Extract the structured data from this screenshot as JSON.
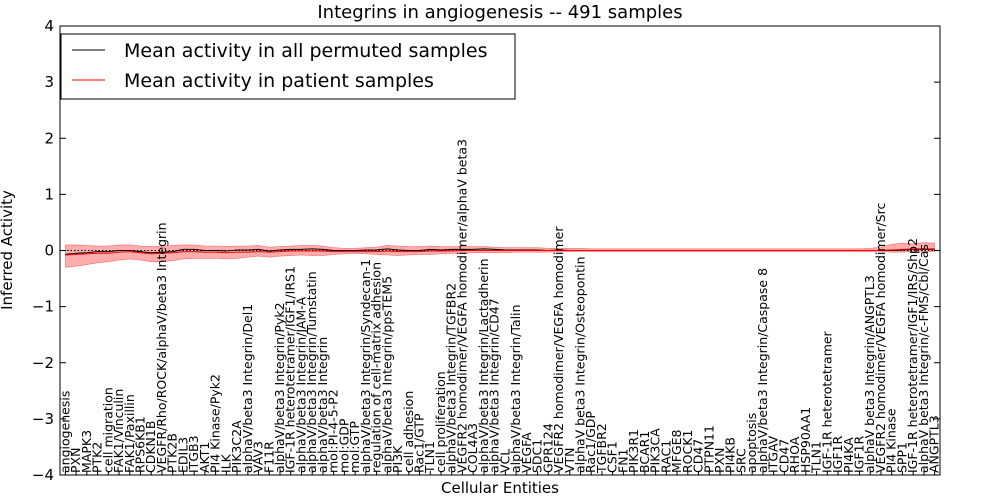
{
  "chart_data": {
    "type": "line",
    "title": "Integrins in angiogenesis -- 491 samples",
    "xlabel": "Cellular Entities",
    "ylabel": "Inferred Activity",
    "ylim": [
      -4,
      4
    ],
    "yticks": [
      "−4",
      "−3",
      "−2",
      "−1",
      "0",
      "1",
      "2",
      "3",
      "4"
    ],
    "categories": [
      "angiogenesis",
      "PXN",
      "MAPK3",
      "PTK2",
      "cell migration",
      "FAK1/Vinculin",
      "FAK1/Paxillin",
      "RPS6KB1",
      "CDKN1B",
      "VEGFR/Rho/ROCK/alphaV/beta3 Integrin",
      "PTK2B",
      "EDIL3",
      "ITGB3",
      "AKT1",
      "PI4 Kinase/Pyk2",
      "ILK",
      "PIK3C2A",
      "alphaV/beta3 Integrin/Del1",
      "VAV3",
      "F11R",
      "alphaV/beta3 Integrin/Pyk2",
      "IGF-1R heterotetramer/IGF1/IRS1",
      "alphaV/beta3 Integrin/JAM-A",
      "alphaV/beta3 Integrin/Tumstatin",
      "alphaV/beta3 Integrin",
      "mol:PI-4-5-P2",
      "mol:GDP",
      "mol:GTP",
      "alphaV/beta3 Integrin/Syndecan-1",
      "regulation of cell-matrix adhesion",
      "alphaV/beta3 Integrin/ppsTEM5",
      "PI3K",
      "cell adhesion",
      "Rac1/GTP",
      "TLN1",
      "cell proliferation",
      "alphaV/beta3 Integrin/TGFBR2",
      "VEGFR2 homodimer/VEGFA homodimer/alphaV beta3",
      "COL4A3",
      "alphaV/beta3 Integrin/Lactadherin",
      "alphaV/beta3 Integrin/CD47",
      "VCL",
      "alphaV/beta3 Integrin/Talin",
      "VEGFA",
      "SDC1",
      "GPR124",
      "VEGFR2 homodimer/VEGFA homodimer",
      "VTN",
      "alphaV beta3 Integrin/Osteopontin",
      "Rac1/GDP",
      "TGFBR2",
      "CSF1",
      "FN1",
      "PIK3R1",
      "BCAR1",
      "PIK3CA",
      "RAC1",
      "MFGE8",
      "ROCK1",
      "CD47",
      "PTPN11",
      "PXN",
      "PI4KB",
      "SRC",
      "apoptosis",
      "alphaV/beta3 Integrin/Caspase 8",
      "ITGAV",
      "CD47",
      "RHOA",
      "HSP90AA1",
      "TLN1",
      "IGF-1R heterotetramer",
      "IGF1R",
      "PI4KA",
      "IGF1R",
      "alphaV beta3 Integrin/ANGPTL3",
      "VEGFR2 homodimer/VEGFA homodimer/Src",
      "PI4 Kinase",
      "SPP1",
      "IGF-1R heterotetramer/IGF1/IRS/Shp2",
      "alphaV beta3 Integrin/c-FMS/Cbl/Cas",
      "ANGPTL3"
    ],
    "series": [
      {
        "name": "Mean activity in all permuted samples",
        "color": "#000000",
        "values": [
          -0.07,
          -0.05,
          -0.04,
          -0.02,
          -0.02,
          0.0,
          0.0,
          -0.02,
          -0.04,
          -0.03,
          -0.02,
          0.02,
          0.02,
          0.0,
          0.0,
          -0.01,
          0.01,
          0.01,
          0.02,
          -0.01,
          0.01,
          0.02,
          0.02,
          0.03,
          0.02,
          0.0,
          0.0,
          0.0,
          0.01,
          0.01,
          0.03,
          0.01,
          0.0,
          0.0,
          0.02,
          0.01,
          0.02,
          0.02,
          0.02,
          0.03,
          0.02,
          0.01,
          0.01,
          0.01,
          0.01,
          0.0,
          0.01,
          0.0,
          0.0,
          0.0,
          0.0,
          0.0,
          0.0,
          0.0,
          0.0,
          0.0,
          0.0,
          0.0,
          0.0,
          0.0,
          0.0,
          0.0,
          0.0,
          0.0,
          0.0,
          0.0,
          0.0,
          0.0,
          0.0,
          0.0,
          0.0,
          0.0,
          0.0,
          0.0,
          0.0,
          0.0,
          0.0,
          0.0,
          0.01,
          0.02,
          0.02,
          0.02
        ]
      },
      {
        "name": "Mean activity in patient samples",
        "color": "#ff0000",
        "values": [
          -0.08,
          -0.07,
          -0.06,
          -0.05,
          -0.05,
          -0.03,
          -0.02,
          -0.04,
          -0.06,
          -0.05,
          -0.04,
          -0.02,
          -0.02,
          -0.03,
          -0.03,
          -0.04,
          -0.03,
          -0.03,
          -0.02,
          -0.03,
          -0.02,
          -0.01,
          -0.01,
          -0.01,
          -0.01,
          -0.02,
          -0.02,
          -0.02,
          -0.02,
          -0.02,
          -0.01,
          -0.02,
          -0.02,
          -0.02,
          -0.01,
          -0.01,
          -0.01,
          0.0,
          0.0,
          0.0,
          0.0,
          0.0,
          0.0,
          0.0,
          0.0,
          0.0,
          0.0,
          0.0,
          0.0,
          0.0,
          0.0,
          0.0,
          0.0,
          0.0,
          0.0,
          0.0,
          0.0,
          0.0,
          0.0,
          0.0,
          0.0,
          0.0,
          0.0,
          0.0,
          0.0,
          0.0,
          0.0,
          0.0,
          0.0,
          0.0,
          0.0,
          0.0,
          0.0,
          0.0,
          0.0,
          0.0,
          0.0,
          0.01,
          0.02,
          0.03,
          0.03,
          0.03
        ]
      }
    ],
    "band": {
      "color": "#ff0000",
      "lower": [
        -0.3,
        -0.28,
        -0.25,
        -0.22,
        -0.2,
        -0.17,
        -0.15,
        -0.17,
        -0.2,
        -0.2,
        -0.18,
        -0.15,
        -0.14,
        -0.14,
        -0.14,
        -0.15,
        -0.14,
        -0.12,
        -0.1,
        -0.12,
        -0.1,
        -0.09,
        -0.08,
        -0.09,
        -0.09,
        -0.07,
        -0.06,
        -0.05,
        -0.06,
        -0.07,
        -0.08,
        -0.09,
        -0.08,
        -0.07,
        -0.07,
        -0.06,
        -0.05,
        -0.05,
        -0.04,
        -0.04,
        -0.04,
        -0.04,
        -0.03,
        -0.03,
        -0.03,
        -0.03,
        -0.02,
        -0.02,
        -0.02,
        -0.02,
        -0.02,
        -0.02,
        -0.02,
        -0.02,
        -0.02,
        -0.02,
        -0.02,
        -0.02,
        -0.02,
        -0.02,
        -0.02,
        -0.02,
        -0.02,
        -0.02,
        -0.02,
        -0.02,
        -0.02,
        -0.02,
        -0.02,
        -0.02,
        -0.02,
        -0.02,
        -0.02,
        -0.02,
        -0.02,
        -0.02,
        -0.02,
        -0.03,
        -0.03,
        -0.02,
        -0.02,
        -0.02
      ],
      "upper": [
        0.1,
        0.1,
        0.09,
        0.08,
        0.08,
        0.1,
        0.1,
        0.08,
        0.07,
        0.08,
        0.09,
        0.1,
        0.1,
        0.08,
        0.08,
        0.07,
        0.08,
        0.08,
        0.09,
        0.06,
        0.07,
        0.08,
        0.09,
        0.09,
        0.08,
        0.05,
        0.04,
        0.04,
        0.05,
        0.06,
        0.09,
        0.08,
        0.07,
        0.07,
        0.08,
        0.07,
        0.07,
        0.07,
        0.07,
        0.07,
        0.06,
        0.05,
        0.05,
        0.05,
        0.05,
        0.04,
        0.04,
        0.04,
        0.04,
        0.03,
        0.03,
        0.03,
        0.03,
        0.03,
        0.03,
        0.03,
        0.03,
        0.03,
        0.03,
        0.03,
        0.03,
        0.03,
        0.03,
        0.03,
        0.03,
        0.03,
        0.03,
        0.03,
        0.03,
        0.03,
        0.03,
        0.03,
        0.03,
        0.03,
        0.03,
        0.04,
        0.06,
        0.11,
        0.13,
        0.12,
        0.14,
        0.13
      ]
    },
    "legend": "top-left",
    "grid": false
  }
}
